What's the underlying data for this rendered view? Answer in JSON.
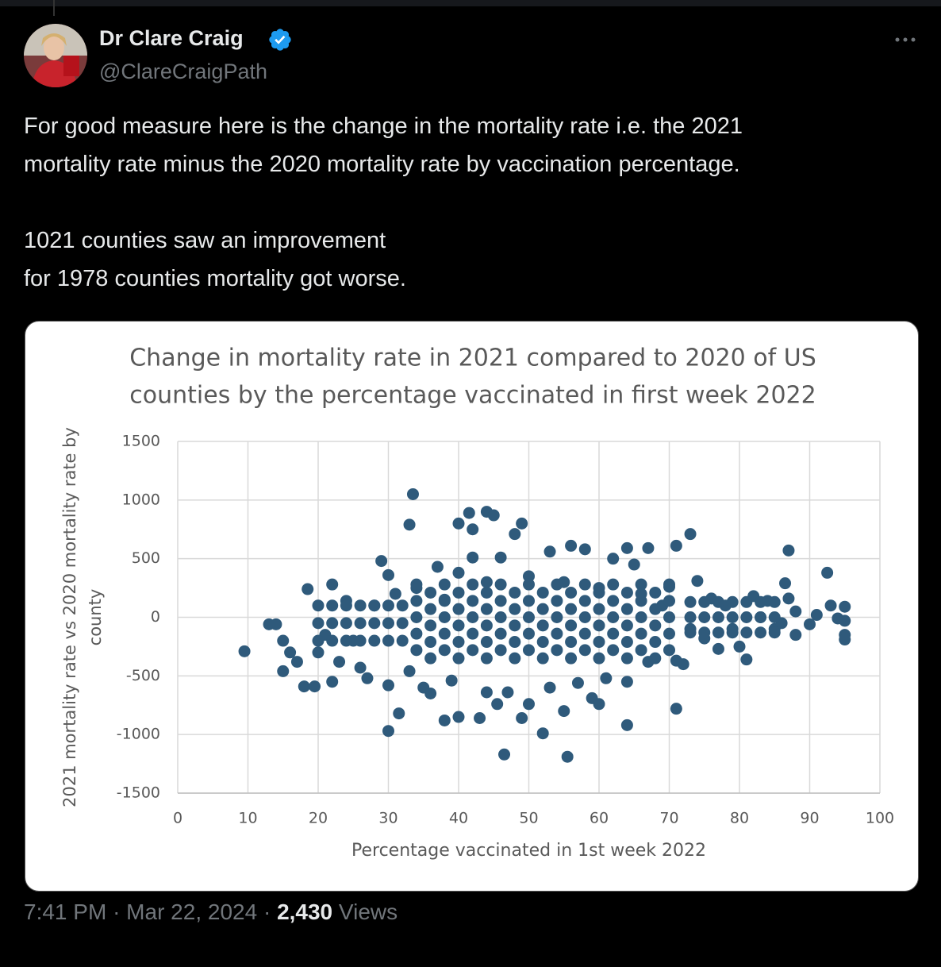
{
  "tweet": {
    "name": "Dr Clare Craig",
    "handle": "@ClareCraigPath",
    "paragraphs": [
      [
        "For good measure here is the change in the mortality rate i.e. the 2021",
        "mortality rate minus the 2020 mortality rate by vaccination percentage."
      ],
      [
        "1021 counties saw an improvement",
        "for 1978 counties mortality got worse."
      ]
    ],
    "footer": {
      "time": "7:41 PM",
      "separator": "·",
      "date": "Mar 22, 2024",
      "views": "2,430",
      "views_label": "Views"
    }
  },
  "chart_data": {
    "type": "scatter",
    "title": [
      "Change in mortality rate in 2021 compared to 2020 of US",
      "counties by the percentage vaccinated in first week 2022"
    ],
    "xlabel": "Percentage vaccinated in 1st week 2022",
    "ylabel": [
      "2021 mortality rate vs 2020 mortality rate by",
      "county"
    ],
    "xlim": [
      0,
      100
    ],
    "xticks": [
      0,
      10,
      20,
      30,
      40,
      50,
      60,
      70,
      80,
      90,
      100
    ],
    "ylim": [
      -1500,
      1500
    ],
    "yticks": [
      -1500,
      -1000,
      -500,
      0,
      500,
      1000,
      1500
    ],
    "grid": true,
    "color": "#2f5a7b",
    "x": [
      9.5,
      33.5,
      33,
      40,
      41.5,
      44,
      42,
      45,
      48,
      49,
      56,
      73,
      71,
      87,
      92.5,
      64,
      67,
      30,
      31.5,
      46.5,
      52,
      55.5,
      64,
      71,
      50,
      49,
      38,
      40,
      43,
      45.5,
      55,
      59,
      60,
      18,
      19.5,
      22,
      15,
      14,
      13,
      15,
      16,
      17,
      18.5,
      22,
      24,
      27,
      29,
      30,
      35,
      37,
      40,
      42,
      46,
      53,
      58,
      62,
      65,
      70,
      74,
      76,
      78,
      82,
      84,
      85,
      86.5,
      87,
      88,
      90,
      91,
      93,
      94,
      95,
      95,
      95,
      95,
      80,
      81,
      77,
      75,
      72,
      71,
      67,
      64,
      61,
      57,
      53,
      47,
      44,
      39,
      36,
      33,
      30,
      26,
      23,
      20,
      21,
      25,
      28,
      31,
      34,
      38,
      44,
      50,
      55,
      60,
      66,
      69,
      73,
      79,
      83,
      86,
      88,
      34,
      34,
      34,
      34,
      34,
      36,
      36,
      36,
      36,
      36,
      38,
      38,
      38,
      38,
      38,
      40,
      40,
      40,
      40,
      40,
      42,
      42,
      42,
      42,
      42,
      44,
      44,
      44,
      44,
      44,
      46,
      46,
      46,
      46,
      46,
      48,
      48,
      48,
      48,
      48,
      50,
      50,
      50,
      50,
      50,
      52,
      52,
      52,
      52,
      52,
      54,
      54,
      54,
      54,
      54,
      56,
      56,
      56,
      56,
      56,
      58,
      58,
      58,
      58,
      58,
      60,
      60,
      60,
      60,
      60,
      62,
      62,
      62,
      62,
      62,
      64,
      64,
      64,
      64,
      64,
      66,
      66,
      66,
      66,
      66,
      68,
      68,
      68,
      68,
      68,
      70,
      70,
      70,
      70,
      70,
      73,
      73,
      73,
      75,
      75,
      75,
      77,
      77,
      77,
      79,
      79,
      79,
      81,
      81,
      81,
      83,
      83,
      83,
      85,
      85,
      85,
      20,
      20,
      20,
      22,
      22,
      22,
      24,
      24,
      24,
      26,
      26,
      26,
      28,
      28,
      28,
      30,
      30,
      30,
      32,
      32,
      32
    ],
    "values": [
      -290,
      1050,
      790,
      800,
      890,
      900,
      750,
      870,
      710,
      800,
      610,
      710,
      610,
      570,
      380,
      590,
      590,
      -970,
      -820,
      -1170,
      -990,
      -1190,
      -920,
      -780,
      -740,
      -860,
      -880,
      -850,
      -860,
      -740,
      -800,
      -690,
      -740,
      -590,
      -590,
      -550,
      -460,
      -60,
      -60,
      -200,
      -300,
      -380,
      240,
      280,
      140,
      -520,
      480,
      360,
      -600,
      430,
      380,
      510,
      510,
      560,
      580,
      500,
      450,
      260,
      310,
      160,
      100,
      180,
      140,
      -100,
      290,
      160,
      50,
      -60,
      20,
      100,
      -10,
      90,
      -150,
      -190,
      -30,
      -250,
      -360,
      -270,
      -180,
      -400,
      -370,
      -380,
      -550,
      -520,
      -560,
      -600,
      -640,
      -640,
      -540,
      -650,
      -460,
      -580,
      -430,
      -380,
      -300,
      -150,
      -200,
      100,
      200,
      250,
      150,
      300,
      350,
      300,
      250,
      200,
      100,
      -100,
      -100,
      0,
      -50,
      -150,
      -280,
      -140,
      0,
      140,
      280,
      -210,
      -70,
      70,
      210,
      -350,
      -280,
      -140,
      0,
      140,
      280,
      -210,
      -70,
      70,
      210,
      -350,
      -280,
      -140,
      0,
      140,
      280,
      -210,
      -70,
      70,
      210,
      -350,
      -280,
      -140,
      0,
      140,
      280,
      -210,
      -70,
      70,
      210,
      -350,
      -280,
      -140,
      0,
      140,
      280,
      -210,
      -70,
      70,
      210,
      -350,
      -280,
      -140,
      0,
      140,
      280,
      -210,
      -70,
      70,
      210,
      -350,
      -280,
      -140,
      0,
      140,
      280,
      -210,
      -70,
      70,
      210,
      -350,
      -280,
      -140,
      0,
      140,
      280,
      -210,
      -70,
      70,
      210,
      -350,
      -280,
      -140,
      0,
      140,
      280,
      -210,
      -70,
      70,
      210,
      -350,
      -280,
      -140,
      0,
      140,
      280,
      -130,
      0,
      130,
      -130,
      0,
      130,
      -130,
      0,
      130,
      -130,
      0,
      130,
      -130,
      0,
      130,
      -130,
      0,
      130,
      -130,
      0,
      130,
      -200,
      -50,
      100,
      -200,
      -50,
      100,
      -200,
      -50,
      100,
      -200,
      -50,
      100,
      -200,
      -50,
      100,
      -200,
      -50,
      100,
      -200,
      -50,
      100
    ]
  }
}
